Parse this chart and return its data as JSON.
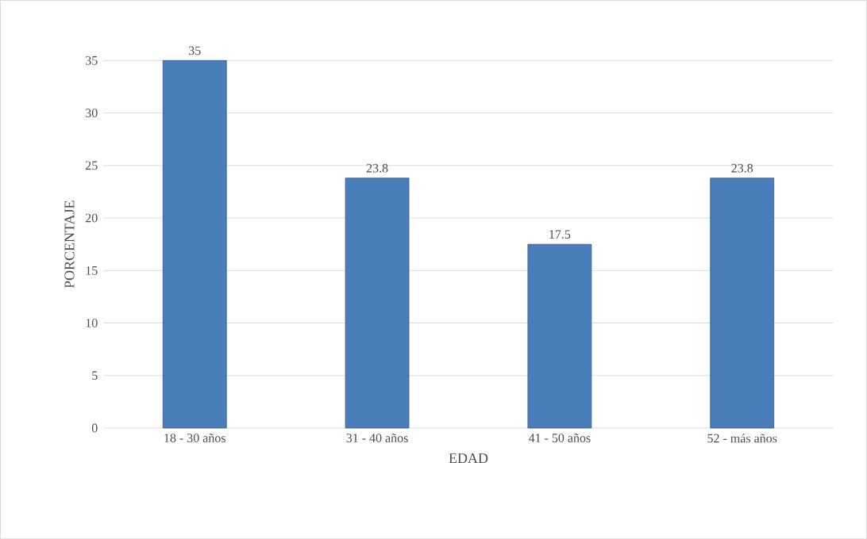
{
  "chart_data": {
    "type": "bar",
    "xlabel": "EDAD",
    "ylabel": "PORCENTAJE",
    "categories": [
      "18 - 30 años",
      "31 - 40 años",
      "41 - 50 años",
      "52 - más años"
    ],
    "values": [
      35,
      23.8,
      17.5,
      23.8
    ],
    "color": "#4a7ebb",
    "ylim": [
      0,
      35
    ],
    "yticks": [
      0,
      5,
      10,
      15,
      20,
      25,
      30,
      35
    ],
    "grid": "y",
    "data_labels": true
  }
}
